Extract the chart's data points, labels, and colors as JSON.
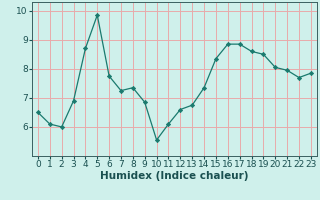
{
  "x": [
    0,
    1,
    2,
    3,
    4,
    5,
    6,
    7,
    8,
    9,
    10,
    11,
    12,
    13,
    14,
    15,
    16,
    17,
    18,
    19,
    20,
    21,
    22,
    23
  ],
  "y": [
    6.5,
    6.1,
    6.0,
    6.9,
    8.7,
    9.85,
    7.75,
    7.25,
    7.35,
    6.85,
    5.55,
    6.1,
    6.6,
    6.75,
    7.35,
    8.35,
    8.85,
    8.85,
    8.6,
    8.5,
    8.05,
    7.95,
    7.7,
    7.85
  ],
  "xlabel": "Humidex (Indice chaleur)",
  "ylim": [
    5.0,
    10.3
  ],
  "xlim": [
    -0.5,
    23.5
  ],
  "yticks": [
    6,
    7,
    8,
    9,
    10
  ],
  "xticks": [
    0,
    1,
    2,
    3,
    4,
    5,
    6,
    7,
    8,
    9,
    10,
    11,
    12,
    13,
    14,
    15,
    16,
    17,
    18,
    19,
    20,
    21,
    22,
    23
  ],
  "line_color": "#1a7a6e",
  "marker": "D",
  "marker_size": 2.2,
  "bg_color": "#cff0eb",
  "grid_color": "#e8aaaa",
  "axis_color": "#3a6060",
  "tick_color": "#1a5050",
  "label_color": "#1a5050",
  "xlabel_fontsize": 7.5,
  "tick_fontsize": 6.5
}
